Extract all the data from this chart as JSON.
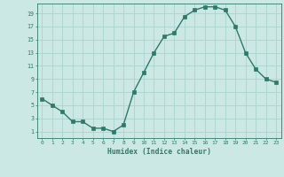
{
  "x": [
    0,
    1,
    2,
    3,
    4,
    5,
    6,
    7,
    8,
    9,
    10,
    11,
    12,
    13,
    14,
    15,
    16,
    17,
    18,
    19,
    20,
    21,
    22,
    23
  ],
  "y": [
    6,
    5,
    4,
    2.5,
    2.5,
    1.5,
    1.5,
    1,
    2,
    7,
    10,
    13,
    15.5,
    16,
    18.5,
    19.5,
    20,
    20,
    19.5,
    17,
    13,
    10.5,
    9,
    8.5
  ],
  "line_color": "#2d7a6a",
  "marker_color": "#2d7a6a",
  "bg_color": "#cce8e4",
  "grid_color": "#aad4ce",
  "xlabel": "Humidex (Indice chaleur)",
  "ytick_labels": [
    "1",
    "3",
    "5",
    "7",
    "9",
    "11",
    "13",
    "15",
    "17",
    "19"
  ],
  "ytick_vals": [
    1,
    3,
    5,
    7,
    9,
    11,
    13,
    15,
    17,
    19
  ],
  "ylim": [
    0,
    20.5
  ],
  "xlim": [
    -0.5,
    23.5
  ],
  "xtick_vals": [
    0,
    1,
    2,
    3,
    4,
    5,
    6,
    7,
    8,
    9,
    10,
    11,
    12,
    13,
    14,
    15,
    16,
    17,
    18,
    19,
    20,
    21,
    22,
    23
  ],
  "font_color": "#2d7a6a"
}
